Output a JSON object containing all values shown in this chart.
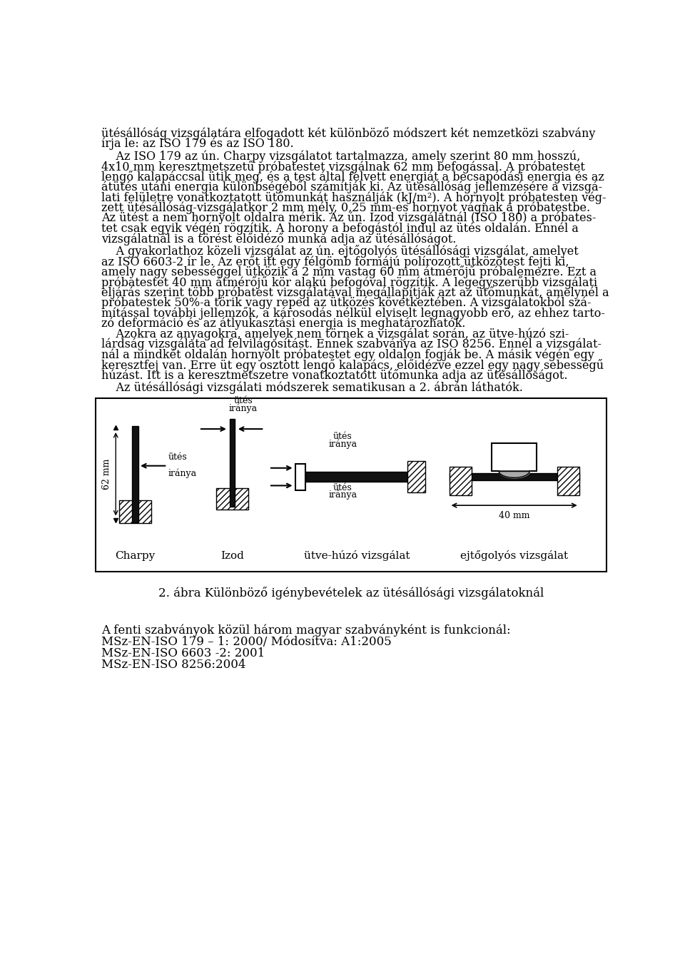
{
  "background_color": "#ffffff",
  "text_color": "#000000",
  "figure_caption": "2. ábra Különböző igénybevételek az ütésállósági vizsgálatoknál",
  "bottom_text_lines": [
    "A fenti szabványok közül három magyar szabványként is funkcionál:",
    "MSz-EN-ISO 179 – 1: 2000/ Módosítva: A1:2005",
    "MSz-EN-ISO 6603 -2: 2001",
    "MSz-EN-ISO 8256:2004"
  ],
  "text_lines": [
    "ütésállóság vizsgálatára elfogadott két különböző módszert két nemzetközi szabvány",
    "írja le: az ISO 179 és az ISO 180.",
    "    Az ISO 179 az ún. Charpy vizsgálatot tartalmazza, amely szerint 80 mm hosszú,",
    "4x10 mm keresztmetszetű próbatestet vizsgálnak 62 mm befogással. A próbatestet",
    "lengő kalapáccsal ütik meg, és a test által felvett energiát a becsapódási energia és az",
    "átütés utáni energia különbségéből számítják ki. Az ütésállóság jellemzésére a vizsgá-",
    "lati felületre vonatkoztatott ütőmunkát használják (kJ/m²). A hornyolt próbatesten vég-",
    "zett ütésállóság-vizsgálatkor 2 mm mély, 0,25 mm-es hornyot vágnak a próbatestbe.",
    "Az ütést a nem hornyolt oldalra mérik. Az ún. Izod vizsgálatnál (ISO 180) a próbates-",
    "tet csak egyik végén rögzítik. A horony a befogástól indul az ütés oldalán. Ennél a",
    "vizsgálatnál is a törést előidéző munka adja az ütésállóságot.",
    "    A gyakorlathoz közeli vizsgálat az ún. ejtőgolyós ütésállósági vizsgálat, amelyet",
    "az ISO 6603-2 ír le. Az erőt itt egy félgömb formájú polírozott ütközőtest fejti ki,",
    "amely nagy sebességgel ütközik a 2 mm vastag 60 mm átmérőjű próbalemezre. Ezt a",
    "próbatestet 40 mm átmérőjű kör alakú befogóval rögzítik. A legegyszerűbb vizsgálati",
    "eljárás szerint több próbatest vizsgálatával megállapítják azt az ütőmunkát, amelynél a",
    "próbatestek 50%-a törik vagy reped az ütközés következtében. A vizsgálatokból szá-",
    "mítással további jellemzők, a károsodás nélkül elviselt legnagyobb erő, az ehhez tarto-",
    "zó deformáció és az átlyukasztási energia is meghatározhatók.",
    "    Azokra az anyagokra, amelyek nem törnek a vizsgálat során, az ütve-húzó szi-",
    "lárdság vizsgálata ad felvilágosítást. Ennek szabványa az ISO 8256. Ennél a vizsgálat-",
    "nál a mindkét oldalán hornyolt próbatestet egy oldalon fogják be. A másik végén egy",
    "keresztfej van. Erre üt egy osztott lengő kalapács, előidézve ezzel egy nagy sebességű",
    "húzást. Itt is a keresztmetszetre vonatkoztatott ütőmunka adja az ütésállóságot.",
    "    Az ütésállósági vizsgálati módszerek sematikusan a 2. ábrán láthatók."
  ]
}
